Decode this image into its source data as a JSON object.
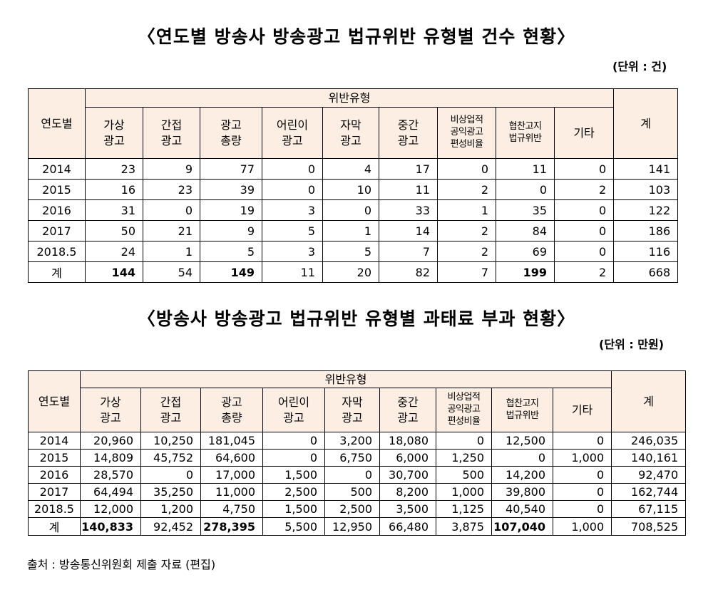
{
  "table1": {
    "title": "〈연도별 방송사 방송광고 법규위반 유형별 건수 현황〉",
    "unit": "(단위 : 건)",
    "header": {
      "year_col": "연도별",
      "group": "위반유형",
      "total_col": "계",
      "types": [
        [
          "가상",
          "광고"
        ],
        [
          "간접",
          "광고"
        ],
        [
          "광고",
          "총량"
        ],
        [
          "어린이",
          "광고"
        ],
        [
          "자막",
          "광고"
        ],
        [
          "중간",
          "광고"
        ],
        [
          "비상업적",
          "공익광고",
          "편성비율"
        ],
        [
          "협찬고지",
          "법규위반"
        ],
        [
          "기타"
        ]
      ]
    },
    "rows": [
      [
        "2014",
        "23",
        "9",
        "77",
        "0",
        "4",
        "17",
        "0",
        "11",
        "0",
        "141"
      ],
      [
        "2015",
        "16",
        "23",
        "39",
        "0",
        "10",
        "11",
        "2",
        "0",
        "2",
        "103"
      ],
      [
        "2016",
        "31",
        "0",
        "19",
        "3",
        "0",
        "33",
        "1",
        "35",
        "0",
        "122"
      ],
      [
        "2017",
        "50",
        "21",
        "9",
        "5",
        "1",
        "14",
        "2",
        "84",
        "0",
        "186"
      ],
      [
        "2018.5",
        "24",
        "1",
        "5",
        "3",
        "5",
        "7",
        "2",
        "69",
        "0",
        "116"
      ],
      [
        "계",
        "144",
        "54",
        "149",
        "11",
        "20",
        "82",
        "7",
        "199",
        "2",
        "668"
      ]
    ]
  },
  "table2": {
    "title": "〈방송사 방송광고 법규위반 유형별 과태료 부과 현황〉",
    "unit": "(단위 : 만원)",
    "header": {
      "year_col": "연도별",
      "group": "위반유형",
      "total_col": "계",
      "types": [
        [
          "가상",
          "광고"
        ],
        [
          "간접",
          "광고"
        ],
        [
          "광고",
          "총량"
        ],
        [
          "어린이",
          "광고"
        ],
        [
          "자막",
          "광고"
        ],
        [
          "중간",
          "광고"
        ],
        [
          "비상업적",
          "공익광고",
          "편성비율"
        ],
        [
          "협찬고지",
          "법규위반"
        ],
        [
          "기타"
        ]
      ]
    },
    "rows": [
      [
        "2014",
        "20,960",
        "10,250",
        "181,045",
        "0",
        "3,200",
        "18,080",
        "0",
        "12,500",
        "0",
        "246,035"
      ],
      [
        "2015",
        "14,809",
        "45,752",
        "64,600",
        "0",
        "6,750",
        "6,000",
        "1,250",
        "0",
        "1,000",
        "140,161"
      ],
      [
        "2016",
        "28,570",
        "0",
        "17,000",
        "1,500",
        "0",
        "30,700",
        "500",
        "14,200",
        "0",
        "92,470"
      ],
      [
        "2017",
        "64,494",
        "35,250",
        "11,000",
        "2,500",
        "500",
        "8,200",
        "1,000",
        "39,800",
        "0",
        "162,744"
      ],
      [
        "2018.5",
        "12,000",
        "1,200",
        "4,750",
        "1,500",
        "2,500",
        "3,500",
        "1,125",
        "40,540",
        "0",
        "67,115"
      ],
      [
        "계",
        "140,833",
        "92,452",
        "278,395",
        "5,500",
        "12,950",
        "66,480",
        "3,875",
        "107,040",
        "1,000",
        "708,525"
      ]
    ]
  },
  "source": "출처 : 방송통신위원회 제출 자료 (편집)"
}
